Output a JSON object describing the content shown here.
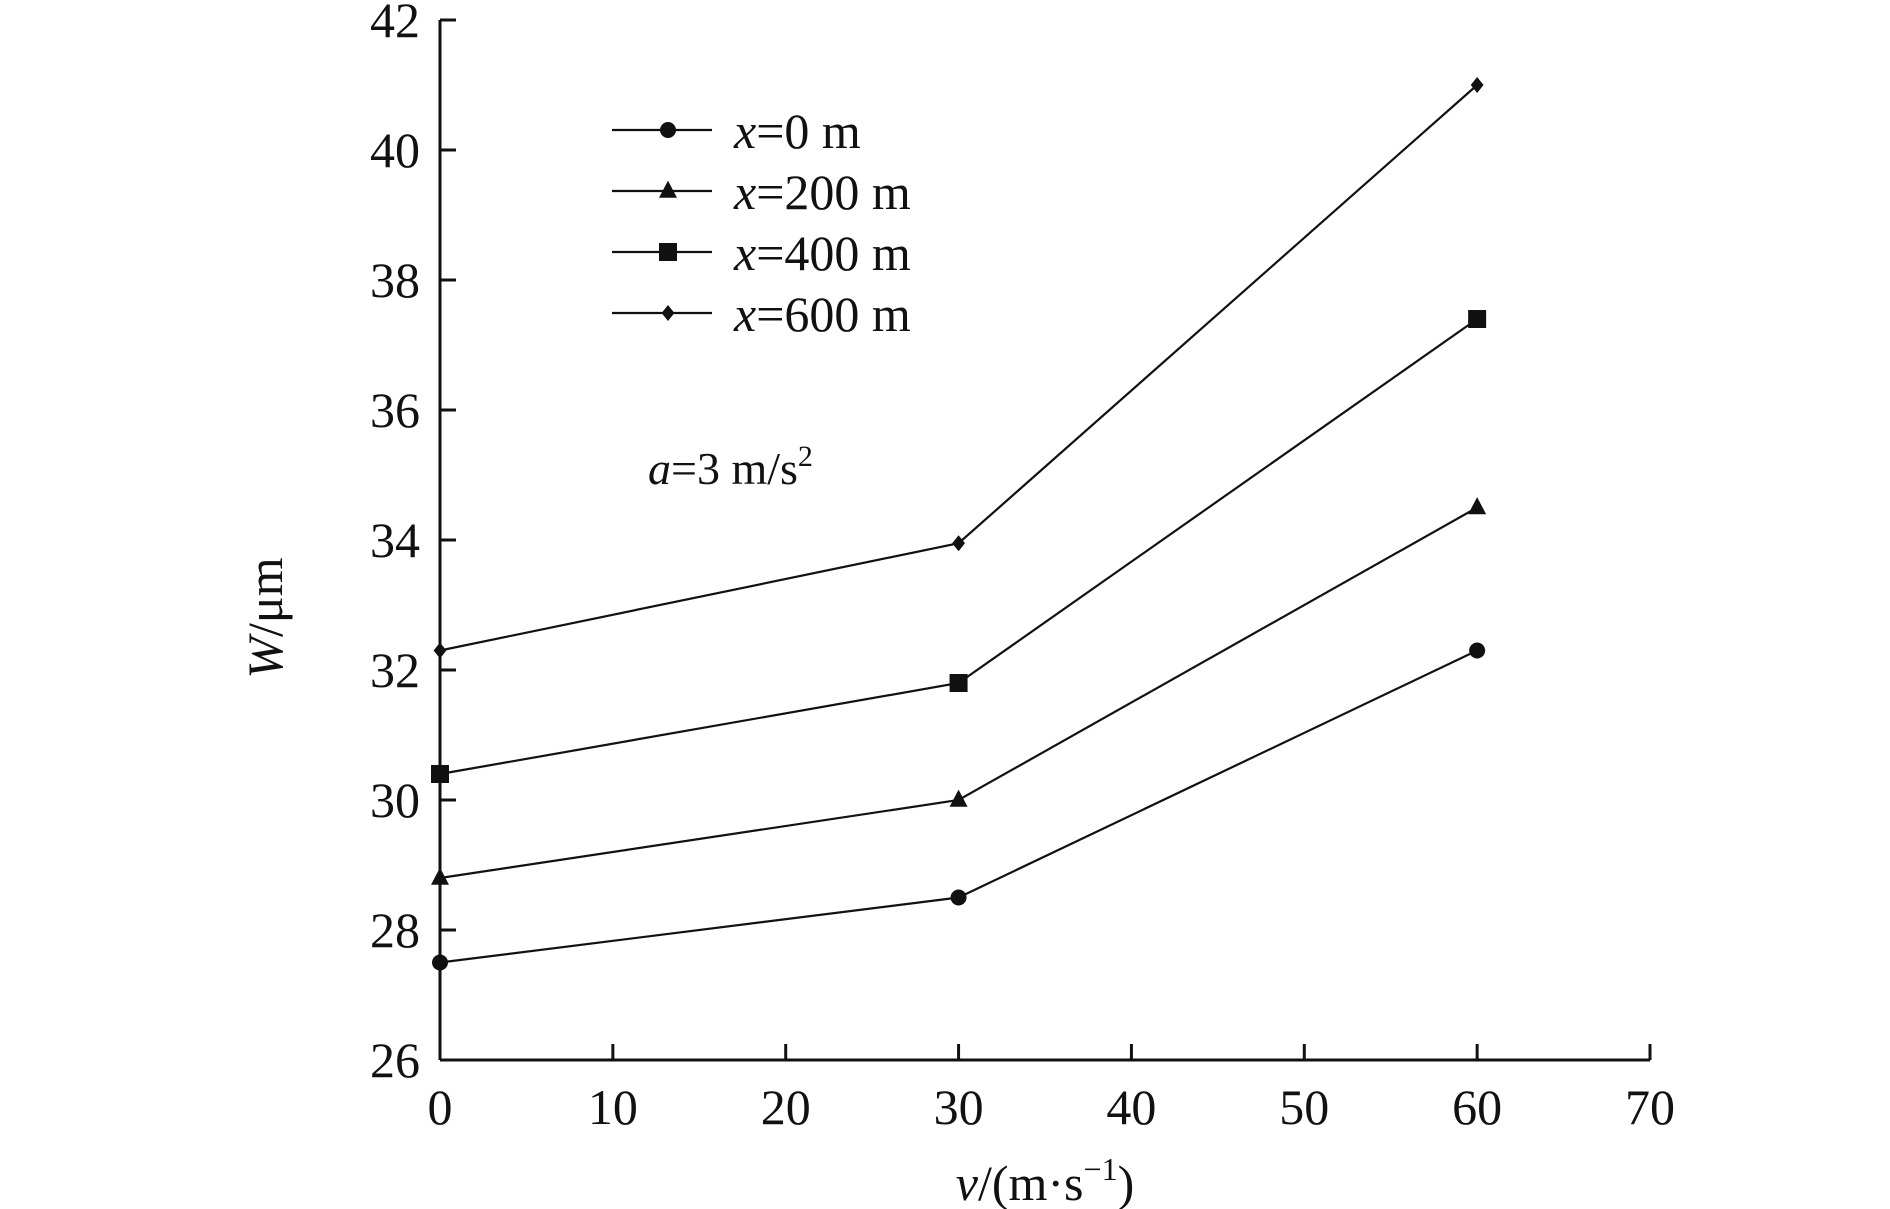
{
  "chart_data": {
    "type": "line",
    "xlabel": {
      "var": "v",
      "rest": "/(m·s",
      "sup": "−1",
      "close": ")"
    },
    "ylabel": {
      "var": "W",
      "rest": "/μm"
    },
    "xlim": [
      0,
      70
    ],
    "ylim": [
      26,
      42
    ],
    "xticks": [
      0,
      10,
      20,
      30,
      40,
      50,
      60,
      70
    ],
    "yticks": [
      26,
      28,
      30,
      32,
      34,
      36,
      38,
      40,
      42
    ],
    "grid": false,
    "legend_position": "top-left",
    "annotation": {
      "var": "a",
      "rest": "=3 m/s",
      "sup": "2"
    },
    "x": [
      0,
      30,
      60
    ],
    "series": [
      {
        "name": "=0 m",
        "name_var": "x",
        "marker": "circle",
        "values": [
          27.5,
          28.5,
          32.3
        ]
      },
      {
        "name": "=200 m",
        "name_var": "x",
        "marker": "triangle",
        "values": [
          28.8,
          30.0,
          34.5
        ]
      },
      {
        "name": "=400 m",
        "name_var": "x",
        "marker": "square",
        "values": [
          30.4,
          31.8,
          37.4
        ]
      },
      {
        "name": "=600 m",
        "name_var": "x",
        "marker": "diamond",
        "values": [
          32.3,
          33.95,
          41.0
        ]
      }
    ]
  }
}
